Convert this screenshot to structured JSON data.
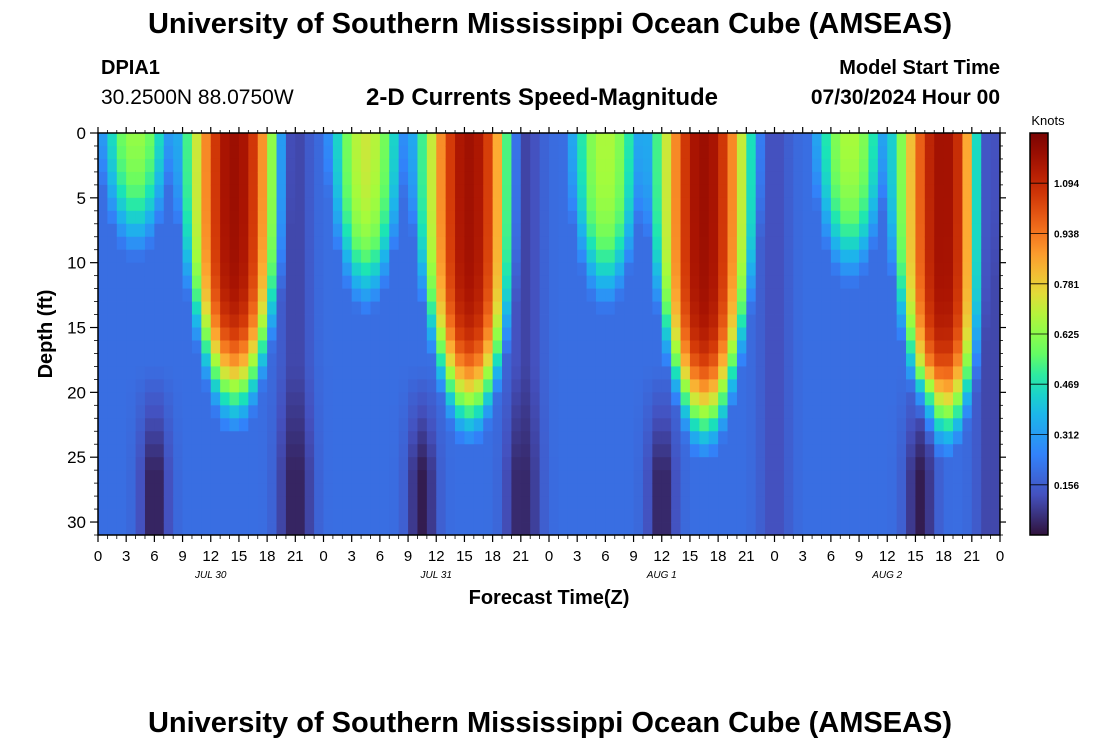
{
  "header": {
    "title": "University of Southern Mississippi Ocean Cube (AMSEAS)",
    "station_id": "DPIA1",
    "coordinates": "30.2500N  88.0750W",
    "chart_title": "2-D Currents Speed-Magnitude",
    "start_label": "Model Start Time",
    "start_value": "07/30/2024 Hour 00"
  },
  "footer": {
    "title": "University of Southern Mississippi Ocean Cube (AMSEAS)"
  },
  "chart_data": {
    "type": "heatmap",
    "title": "2-D Currents Speed-Magnitude",
    "xlabel": "Forecast Time(Z)",
    "ylabel": "Depth (ft)",
    "x_range_hours": [
      0,
      96
    ],
    "y_range_ft": [
      0,
      31
    ],
    "y_inverted": true,
    "x_ticks": [
      {
        "hour": 0,
        "label": "0"
      },
      {
        "hour": 3,
        "label": "3"
      },
      {
        "hour": 6,
        "label": "6"
      },
      {
        "hour": 9,
        "label": "9"
      },
      {
        "hour": 12,
        "label": "12"
      },
      {
        "hour": 15,
        "label": "15"
      },
      {
        "hour": 18,
        "label": "18"
      },
      {
        "hour": 21,
        "label": "21"
      },
      {
        "hour": 24,
        "label": "0"
      },
      {
        "hour": 27,
        "label": "3"
      },
      {
        "hour": 30,
        "label": "6"
      },
      {
        "hour": 33,
        "label": "9"
      },
      {
        "hour": 36,
        "label": "12"
      },
      {
        "hour": 39,
        "label": "15"
      },
      {
        "hour": 42,
        "label": "18"
      },
      {
        "hour": 45,
        "label": "21"
      },
      {
        "hour": 48,
        "label": "0"
      },
      {
        "hour": 51,
        "label": "3"
      },
      {
        "hour": 54,
        "label": "6"
      },
      {
        "hour": 57,
        "label": "9"
      },
      {
        "hour": 60,
        "label": "12"
      },
      {
        "hour": 63,
        "label": "15"
      },
      {
        "hour": 66,
        "label": "18"
      },
      {
        "hour": 69,
        "label": "21"
      },
      {
        "hour": 72,
        "label": "0"
      },
      {
        "hour": 75,
        "label": "3"
      },
      {
        "hour": 78,
        "label": "6"
      },
      {
        "hour": 81,
        "label": "9"
      },
      {
        "hour": 84,
        "label": "12"
      },
      {
        "hour": 87,
        "label": "15"
      },
      {
        "hour": 90,
        "label": "18"
      },
      {
        "hour": 93,
        "label": "21"
      },
      {
        "hour": 96,
        "label": "0"
      }
    ],
    "date_labels": [
      {
        "hour": 12,
        "label": "JUL 30"
      },
      {
        "hour": 36,
        "label": "JUL 31"
      },
      {
        "hour": 60,
        "label": "AUG 1"
      },
      {
        "hour": 84,
        "label": "AUG 2"
      }
    ],
    "y_ticks": [
      0,
      5,
      10,
      15,
      20,
      25,
      30
    ],
    "colorbar": {
      "title": "Knots",
      "min": 0.0,
      "max": 1.25,
      "ticks": [
        0.156,
        0.312,
        0.469,
        0.625,
        0.781,
        0.938,
        1.094
      ],
      "tick_labels": [
        "0.156",
        "0.312",
        "0.469",
        "0.625",
        "0.781",
        "0.938",
        "1.094"
      ]
    },
    "speed_maxima": [
      {
        "center_hour": 14.5,
        "peak_knots": 1.18,
        "reach_depth_ft": 20
      },
      {
        "center_hour": 39.5,
        "peak_knots": 1.17,
        "reach_depth_ft": 21
      },
      {
        "center_hour": 64.5,
        "peak_knots": 1.18,
        "reach_depth_ft": 22
      },
      {
        "center_hour": 90.0,
        "peak_knots": 1.17,
        "reach_depth_ft": 22
      }
    ],
    "secondary_maxima": [
      {
        "center_hour": 4.0,
        "peak_knots": 0.66,
        "reach_depth_ft": 8
      },
      {
        "center_hour": 28.5,
        "peak_knots": 0.72,
        "reach_depth_ft": 12
      },
      {
        "center_hour": 54.0,
        "peak_knots": 0.68,
        "reach_depth_ft": 12
      },
      {
        "center_hour": 80.0,
        "peak_knots": 0.68,
        "reach_depth_ft": 10
      }
    ],
    "speed_minima": [
      {
        "center_hour": 21.0,
        "knots": 0.1
      },
      {
        "center_hour": 45.5,
        "knots": 0.1
      },
      {
        "center_hour": 72.0,
        "knots": 0.12
      },
      {
        "center_hour": 95.0,
        "knots": 0.1
      }
    ],
    "near_bottom_minima": [
      {
        "center_hour": 6.0,
        "knots": 0.02
      },
      {
        "center_hour": 21.0,
        "knots": 0.03
      },
      {
        "center_hour": 34.5,
        "knots": 0.02
      },
      {
        "center_hour": 45.0,
        "knots": 0.04
      },
      {
        "center_hour": 60.0,
        "knots": 0.03
      },
      {
        "center_hour": 87.5,
        "knots": 0.02
      }
    ]
  }
}
